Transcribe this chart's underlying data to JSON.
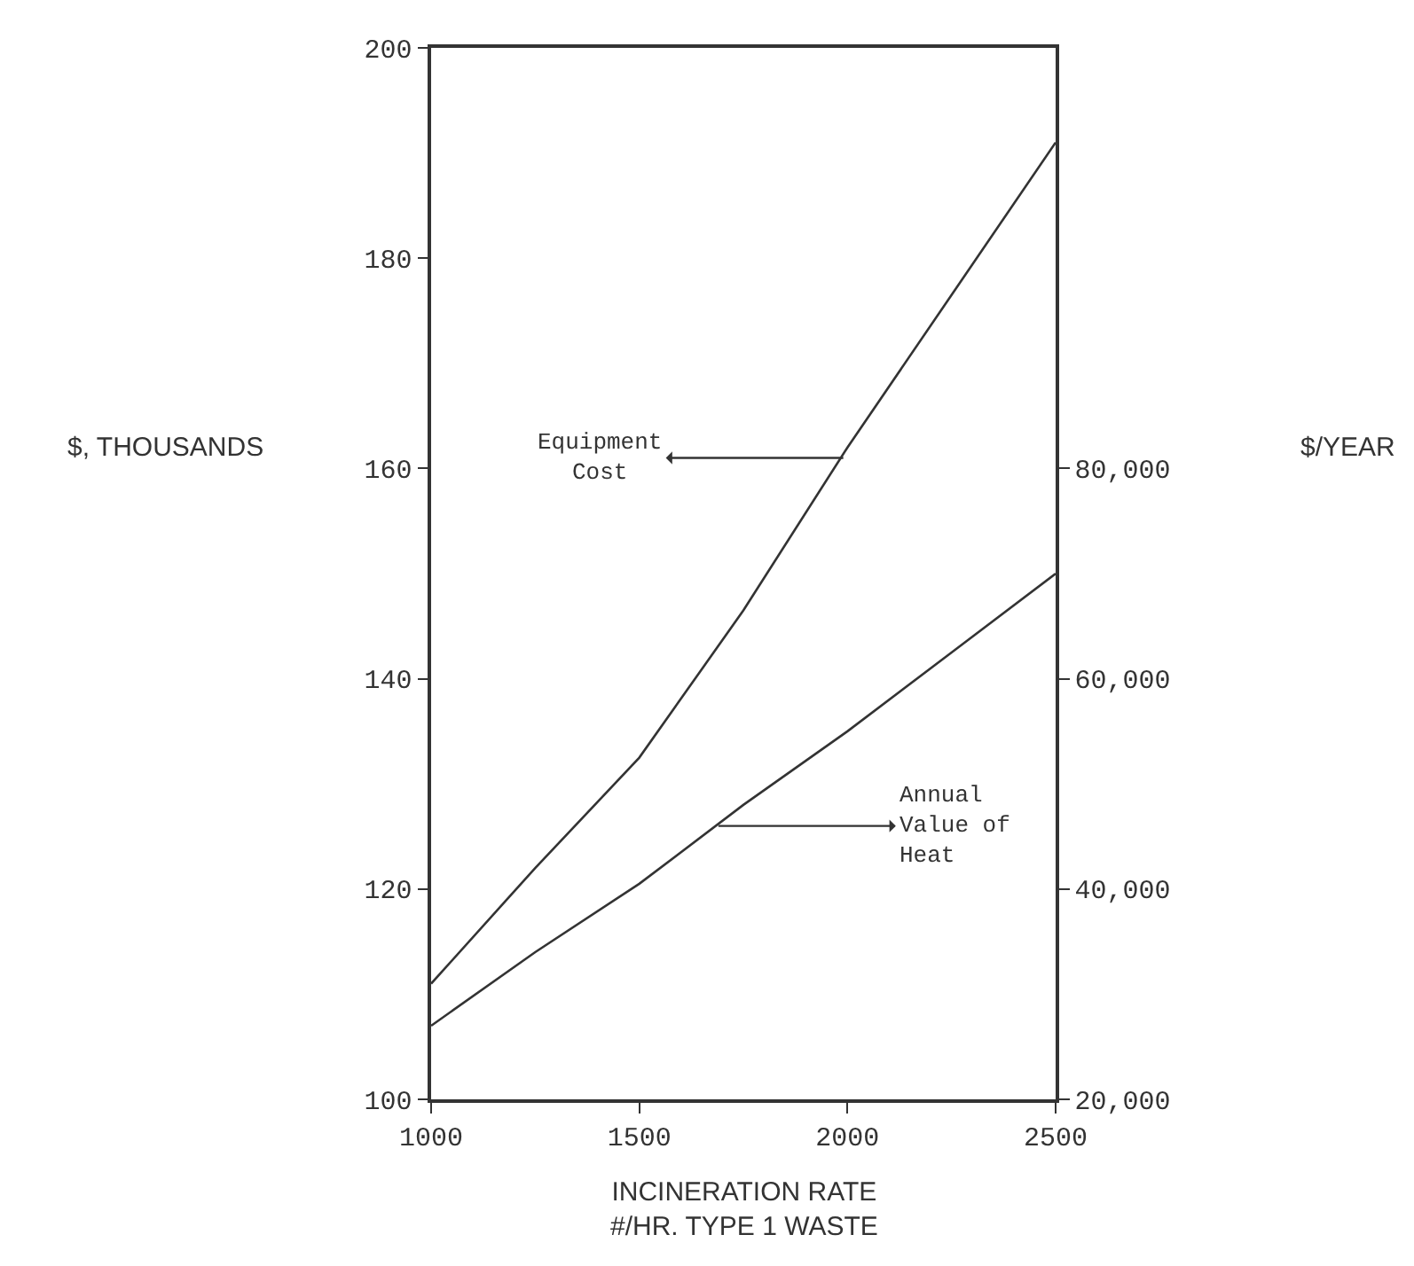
{
  "chart_data": {
    "type": "line",
    "xlabel": "INCINERATION RATE\n#/HR. TYPE 1 WASTE",
    "ylabel": "$, THOUSANDS",
    "y2label": "$/YEAR",
    "x": [
      1000,
      1250,
      1500,
      1750,
      2000,
      2250,
      2500
    ],
    "series": [
      {
        "color": "#333333",
        "values": [
          111,
          122,
          132.5,
          146.5,
          162,
          176.5,
          191
        ]
      },
      {
        "color": "#333333",
        "axis": "y2",
        "values": [
          27000,
          34000,
          40500,
          48000,
          55000,
          62500,
          70000
        ]
      }
    ],
    "xlim": [
      1000,
      2500
    ],
    "xticks": [
      1000,
      1500,
      2000,
      2500
    ],
    "ylim": [
      100,
      200
    ],
    "yticks": [
      100,
      120,
      140,
      160,
      180,
      200
    ],
    "y2lim": [
      20000,
      120000
    ],
    "y2ticks": [
      {
        "value": 20000,
        "label": "20,000"
      },
      {
        "value": 40000,
        "label": "40,000"
      },
      {
        "value": 60000,
        "label": "60,000"
      },
      {
        "value": 80000,
        "label": "80,000"
      }
    ],
    "annotations": [
      {
        "text": "Equipment\nCost",
        "x": 1990,
        "y": 161
      },
      {
        "text": "Annual\nValue of\nHeat",
        "x": 1690,
        "y": 126
      }
    ],
    "marker": "none",
    "line_style": "solid"
  }
}
